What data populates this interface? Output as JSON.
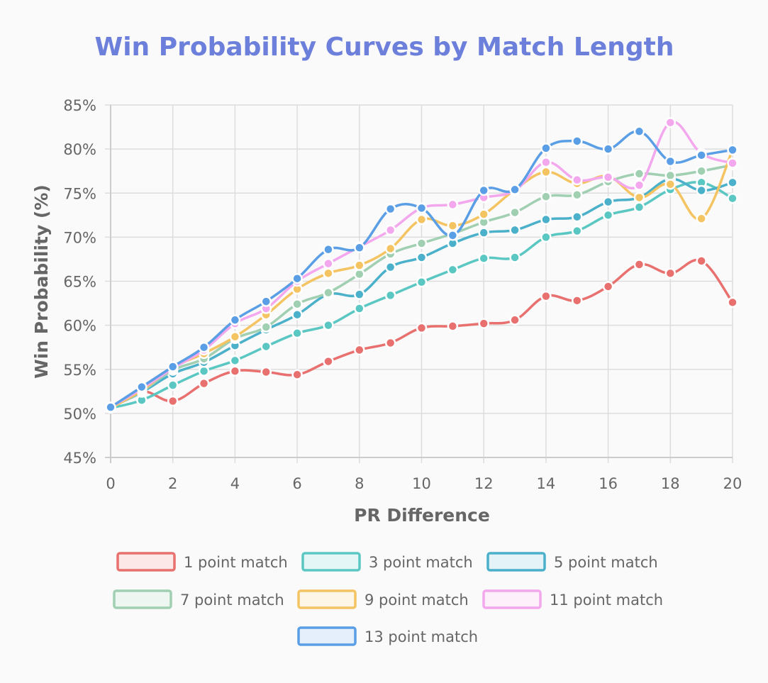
{
  "chart_data": {
    "type": "line",
    "title": "Win Probability Curves by Match Length",
    "xlabel": "PR Difference",
    "ylabel": "Win Probability (%)",
    "x": [
      0,
      1,
      2,
      3,
      4,
      5,
      6,
      7,
      8,
      9,
      10,
      11,
      12,
      13,
      14,
      15,
      16,
      17,
      18,
      19,
      20
    ],
    "xlim": [
      0,
      20
    ],
    "ylim": [
      45,
      85
    ],
    "x_ticks": [
      "0",
      "2",
      "4",
      "6",
      "8",
      "10",
      "12",
      "14",
      "16",
      "18",
      "20"
    ],
    "y_ticks": [
      "45%",
      "50%",
      "55%",
      "60%",
      "65%",
      "70%",
      "75%",
      "80%",
      "85%"
    ],
    "grid": true,
    "legend_position": "bottom",
    "series": [
      {
        "name": "1 point match",
        "color": "#e8716f",
        "fill": "#fde8e8",
        "values": [
          50.7,
          52.5,
          51.4,
          53.4,
          54.8,
          54.7,
          54.4,
          55.9,
          57.2,
          58.0,
          59.7,
          59.9,
          60.2,
          60.6,
          63.3,
          62.8,
          64.4,
          66.9,
          65.9,
          67.3,
          62.6
        ]
      },
      {
        "name": "3 point match",
        "color": "#5bc7c2",
        "fill": "#e4f7f6",
        "values": [
          50.6,
          51.5,
          53.2,
          54.8,
          56.0,
          57.6,
          59.1,
          60.0,
          61.9,
          63.4,
          64.9,
          66.3,
          67.6,
          67.7,
          70.0,
          70.7,
          72.5,
          73.4,
          75.4,
          76.2,
          74.4
        ]
      },
      {
        "name": "5 point match",
        "color": "#4bb0c9",
        "fill": "#e4f3f8",
        "values": [
          50.7,
          52.4,
          54.5,
          55.8,
          57.7,
          59.5,
          61.2,
          63.5,
          63.5,
          66.6,
          67.7,
          69.3,
          70.5,
          70.8,
          72.0,
          72.3,
          74.0,
          74.5,
          76.6,
          75.3,
          76.2
        ]
      },
      {
        "name": "7 point match",
        "color": "#a0cfb2",
        "fill": "#eef6f1",
        "values": [
          50.7,
          52.5,
          54.9,
          56.2,
          58.5,
          59.8,
          62.4,
          63.7,
          65.8,
          68.1,
          69.3,
          70.4,
          71.7,
          72.8,
          74.6,
          74.8,
          76.3,
          77.2,
          77.0,
          77.5,
          78.2
        ]
      },
      {
        "name": "9 point match",
        "color": "#f5c462",
        "fill": "#fdf5e6",
        "values": [
          50.6,
          52.6,
          55.2,
          56.8,
          58.7,
          61.2,
          64.1,
          65.9,
          66.8,
          68.7,
          72.0,
          71.3,
          72.6,
          75.4,
          77.4,
          76.1,
          76.9,
          74.5,
          76.0,
          72.1,
          79.9
        ]
      },
      {
        "name": "11 point match",
        "color": "#f3a8ee",
        "fill": "#fdf0fb",
        "values": [
          50.7,
          52.8,
          55.1,
          57.2,
          60.2,
          61.9,
          65.0,
          67.0,
          68.9,
          70.8,
          73.3,
          73.7,
          74.5,
          75.3,
          78.5,
          76.5,
          76.8,
          75.9,
          83.0,
          79.5,
          78.4
        ]
      },
      {
        "name": "13 point match",
        "color": "#5a9ee6",
        "fill": "#e4effb",
        "values": [
          50.7,
          53.0,
          55.3,
          57.5,
          60.6,
          62.7,
          65.3,
          68.6,
          68.8,
          73.2,
          73.3,
          70.2,
          75.3,
          75.4,
          80.1,
          80.9,
          80.0,
          82.0,
          78.6,
          79.3,
          79.9
        ]
      }
    ]
  }
}
